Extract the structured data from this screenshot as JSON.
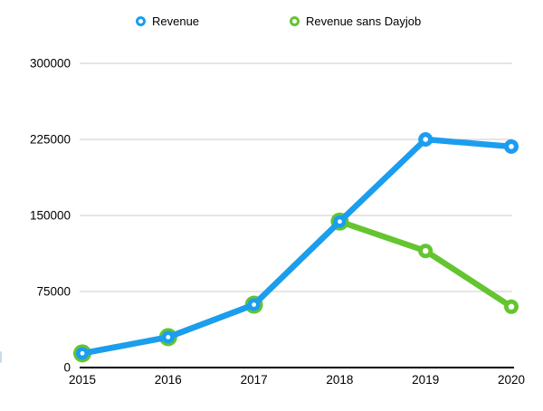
{
  "chart_data": {
    "type": "line",
    "categories": [
      "2015",
      "2016",
      "2017",
      "2018",
      "2019",
      "2020"
    ],
    "series": [
      {
        "name": "Revenue",
        "color": "#1b9df0",
        "values": [
          14000,
          30000,
          62000,
          144000,
          225000,
          218000
        ]
      },
      {
        "name": "Revenue sans Dayjob",
        "color": "#63c52f",
        "values": [
          14000,
          30000,
          62000,
          144000,
          115000,
          60000
        ]
      }
    ],
    "title": "",
    "xlabel": "",
    "ylabel": "",
    "ylim": [
      0,
      300000
    ],
    "yticks": [
      0,
      75000,
      150000,
      225000,
      300000
    ],
    "ytick_labels": [
      "0",
      "75000",
      "150000",
      "225000",
      "300000"
    ],
    "grid": true,
    "legend_position": "top",
    "marker_style": "ring",
    "gridline_color": "#cbcbcb",
    "axis_color": "#000000",
    "background_color": "#ffffff"
  }
}
